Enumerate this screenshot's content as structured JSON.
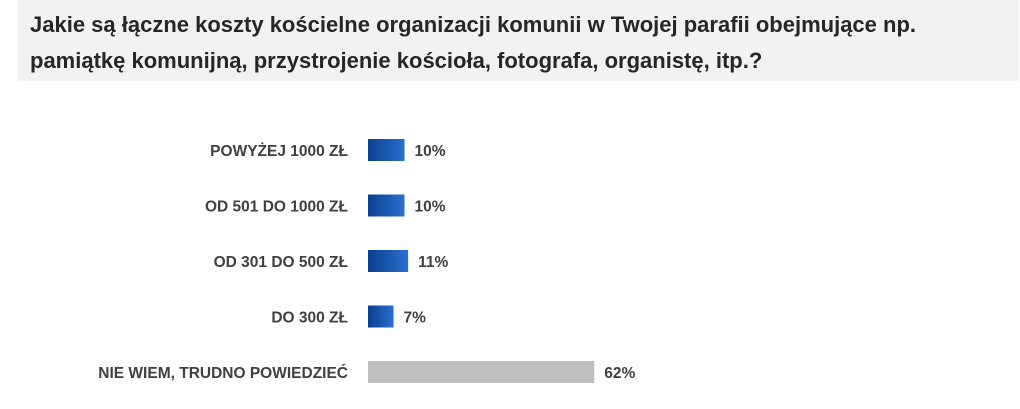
{
  "title": "Jakie są łączne koszty kościelne organizacji komunii w Twojej parafii obejmujące np. pamiątkę komunijną, przystrojenie kościoła, fotografa, organistę, itp.?",
  "colors": {
    "accent_start": "#0b3f8e",
    "accent_end": "#2a6fd1",
    "neutral": "#bfbfbf",
    "title_bg": "#f2f2f2"
  },
  "chart_data": {
    "type": "bar",
    "orientation": "horizontal",
    "title": "Jakie są łączne koszty kościelne organizacji komunii w Twojej parafii obejmujące np. pamiątkę komunijną, przystrojenie kościoła, fotografa, organistę, itp.?",
    "categories": [
      "POWYŻEJ 1000 ZŁ",
      "OD 501 DO 1000 ZŁ",
      "OD 301 DO 500 ZŁ",
      "DO 300 ZŁ",
      "NIE WIEM, TRUDNO POWIEDZIEĆ"
    ],
    "values": [
      10,
      10,
      11,
      7,
      62
    ],
    "value_labels": [
      "10%",
      "10%",
      "11%",
      "7%",
      "62%"
    ],
    "bar_colors": [
      "blue",
      "blue",
      "blue",
      "blue",
      "gray"
    ],
    "xlim": [
      0,
      100
    ],
    "grid": false,
    "legend": "none"
  }
}
